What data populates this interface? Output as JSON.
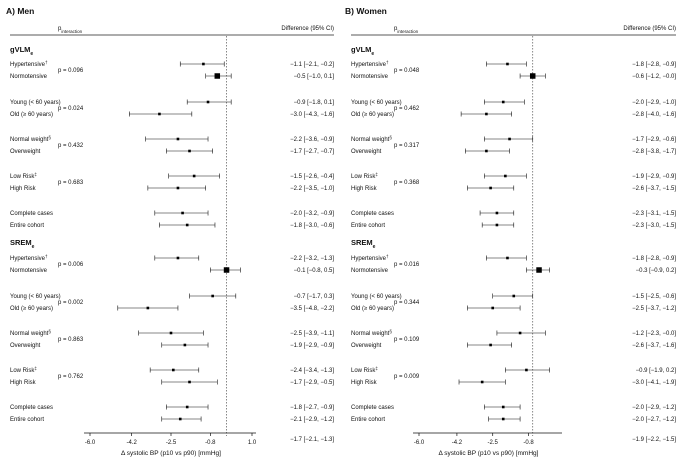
{
  "chart_data": [
    {
      "type": "forest",
      "panel_title": "A) Men",
      "header_left": "p",
      "header_left_sub": "interaction",
      "header_right": "Difference (95% CI)",
      "xlabel": "Δ systolic BP (p10 vs p90) [mmHg]",
      "xticks": [
        "-6.0",
        "-4.2",
        "-2.5",
        "-0.8",
        "1.0"
      ],
      "xlim": [
        -6.0,
        1.0
      ],
      "reference_line": -0.1,
      "groups": [
        {
          "title": "gVLM",
          "title_sub": "e",
          "rows": [
            {
              "label": "Hypertensive",
              "sup": "†",
              "est": -1.1,
              "lo": -2.1,
              "hi": -0.2,
              "ci": "−1.1 [−2.1, −0.2]",
              "p": "p = 0.096",
              "big": false
            },
            {
              "label": "Normotensive",
              "sup": "",
              "est": -0.5,
              "lo": -1.0,
              "hi": 0.1,
              "ci": "−0.5 [−1.0,  0.1]",
              "p": "",
              "big": true
            },
            {
              "label": "Young (< 60 years)",
              "sup": "",
              "est": -0.9,
              "lo": -1.8,
              "hi": 0.1,
              "ci": "−0.9 [−1.8,  0.1]",
              "p": "p = 0.024",
              "big": false
            },
            {
              "label": "Old (≥ 60 years)",
              "sup": "",
              "est": -3.0,
              "lo": -4.3,
              "hi": -1.6,
              "ci": "−3.0 [−4.3, −1.6]",
              "p": "",
              "big": false
            },
            {
              "label": "Normal weight",
              "sup": "§",
              "est": -2.2,
              "lo": -3.6,
              "hi": -0.9,
              "ci": "−2.2 [−3.6, −0.9]",
              "p": "p = 0.432",
              "big": false
            },
            {
              "label": "Overweight",
              "sup": "",
              "est": -1.7,
              "lo": -2.7,
              "hi": -0.7,
              "ci": "−1.7 [−2.7, −0.7]",
              "p": "",
              "big": false
            },
            {
              "label": "Low Risk",
              "sup": "‡",
              "est": -1.5,
              "lo": -2.6,
              "hi": -0.4,
              "ci": "−1.5 [−2.6, −0.4]",
              "p": "p = 0.683",
              "big": false
            },
            {
              "label": "High Risk",
              "sup": "",
              "est": -2.2,
              "lo": -3.5,
              "hi": -1.0,
              "ci": "−2.2 [−3.5, −1.0]",
              "p": "",
              "big": false
            },
            {
              "label": "Complete cases",
              "sup": "",
              "est": -2.0,
              "lo": -3.2,
              "hi": -0.9,
              "ci": "−2.0 [−3.2, −0.9]",
              "p": "",
              "big": false
            },
            {
              "label": "Entire cohort",
              "sup": "",
              "est": -1.8,
              "lo": -3.0,
              "hi": -0.6,
              "ci": "−1.8 [−3.0, −0.6]",
              "p": "",
              "big": false
            }
          ]
        },
        {
          "title": "SREM",
          "title_sub": "e",
          "rows": [
            {
              "label": "Hypertensive",
              "sup": "†",
              "est": -2.2,
              "lo": -3.2,
              "hi": -1.3,
              "ci": "−2.2 [−3.2, −1.3]",
              "p": "p = 0.006",
              "big": false
            },
            {
              "label": "Normotensive",
              "sup": "",
              "est": -0.1,
              "lo": -0.8,
              "hi": 0.5,
              "ci": "−0.1 [−0.8,  0.5]",
              "p": "",
              "big": true
            },
            {
              "label": "Young (< 60 years)",
              "sup": "",
              "est": -0.7,
              "lo": -1.7,
              "hi": 0.3,
              "ci": "−0.7 [−1.7,  0.3]",
              "p": "p = 0.002",
              "big": false
            },
            {
              "label": "Old (≥ 60 years)",
              "sup": "",
              "est": -3.5,
              "lo": -4.8,
              "hi": -2.2,
              "ci": "−3.5 [−4.8, −2.2]",
              "p": "",
              "big": false
            },
            {
              "label": "Normal weight",
              "sup": "§",
              "est": -2.5,
              "lo": -3.9,
              "hi": -1.1,
              "ci": "−2.5 [−3.9, −1.1]",
              "p": "p = 0.863",
              "big": false
            },
            {
              "label": "Overweight",
              "sup": "",
              "est": -1.9,
              "lo": -2.9,
              "hi": -0.9,
              "ci": "−1.9 [−2.9, −0.9]",
              "p": "",
              "big": false
            },
            {
              "label": "Low Risk",
              "sup": "‡",
              "est": -2.4,
              "lo": -3.4,
              "hi": -1.3,
              "ci": "−2.4 [−3.4, −1.3]",
              "p": "p = 0.762",
              "big": false
            },
            {
              "label": "High Risk",
              "sup": "",
              "est": -1.7,
              "lo": -2.9,
              "hi": -0.5,
              "ci": "−1.7 [−2.9, −0.5]",
              "p": "",
              "big": false
            },
            {
              "label": "Complete cases",
              "sup": "",
              "est": -1.8,
              "lo": -2.7,
              "hi": -0.9,
              "ci": "−1.8 [−2.7, −0.9]",
              "p": "",
              "big": false
            },
            {
              "label": "Entire cohort",
              "sup": "",
              "est": -2.1,
              "lo": -2.9,
              "hi": -1.2,
              "ci": "−2.1 [−2.9, −1.2]",
              "p": "",
              "big": false
            }
          ]
        }
      ],
      "footer_ci": "−1.7 [−2.1, −1.3]"
    },
    {
      "type": "forest",
      "panel_title": "B) Women",
      "header_left": "p",
      "header_left_sub": "interaction",
      "header_right": "Difference (95% CI)",
      "xlabel": "Δ systolic BP (p10 vs p90) [mmHg]",
      "xticks": [
        "-6.0",
        "-4.2",
        "-2.5",
        "-0.8"
      ],
      "xlim": [
        -6.0,
        0.6
      ],
      "reference_line": -0.6,
      "groups": [
        {
          "title": "gVLM",
          "title_sub": "e",
          "rows": [
            {
              "label": "Hypertensive",
              "sup": "†",
              "est": -1.8,
              "lo": -2.8,
              "hi": -0.9,
              "ci": "−1.8 [−2.8, −0.9]",
              "p": "p = 0.048",
              "big": false
            },
            {
              "label": "Normotensive",
              "sup": "",
              "est": -0.6,
              "lo": -1.2,
              "hi": -0.0,
              "ci": "−0.6 [−1.2, −0.0]",
              "p": "",
              "big": true
            },
            {
              "label": "Young (< 60 years)",
              "sup": "",
              "est": -2.0,
              "lo": -2.9,
              "hi": -1.0,
              "ci": "−2.0 [−2.9, −1.0]",
              "p": "p = 0.462",
              "big": false
            },
            {
              "label": "Old (≥ 60 years)",
              "sup": "",
              "est": -2.8,
              "lo": -4.0,
              "hi": -1.6,
              "ci": "−2.8 [−4.0, −1.6]",
              "p": "",
              "big": false
            },
            {
              "label": "Normal weight",
              "sup": "§",
              "est": -1.7,
              "lo": -2.9,
              "hi": -0.6,
              "ci": "−1.7 [−2.9, −0.6]",
              "p": "p = 0.317",
              "big": false
            },
            {
              "label": "Overweight",
              "sup": "",
              "est": -2.8,
              "lo": -3.8,
              "hi": -1.7,
              "ci": "−2.8 [−3.8, −1.7]",
              "p": "",
              "big": false
            },
            {
              "label": "Low Risk",
              "sup": "‡",
              "est": -1.9,
              "lo": -2.9,
              "hi": -0.9,
              "ci": "−1.9 [−2.9, −0.9]",
              "p": "p = 0.368",
              "big": false
            },
            {
              "label": "High Risk",
              "sup": "",
              "est": -2.6,
              "lo": -3.7,
              "hi": -1.5,
              "ci": "−2.6 [−3.7, −1.5]",
              "p": "",
              "big": false
            },
            {
              "label": "Complete cases",
              "sup": "",
              "est": -2.3,
              "lo": -3.1,
              "hi": -1.5,
              "ci": "−2.3 [−3.1, −1.5]",
              "p": "",
              "big": false
            },
            {
              "label": "Entire cohort",
              "sup": "",
              "est": -2.3,
              "lo": -3.0,
              "hi": -1.5,
              "ci": "−2.3 [−3.0, −1.5]",
              "p": "",
              "big": false
            }
          ]
        },
        {
          "title": "SREM",
          "title_sub": "e",
          "rows": [
            {
              "label": "Hypertensive",
              "sup": "†",
              "est": -1.8,
              "lo": -2.8,
              "hi": -0.9,
              "ci": "−1.8 [−2.8, −0.9]",
              "p": "p = 0.016",
              "big": false
            },
            {
              "label": "Normotensive",
              "sup": "",
              "est": -0.3,
              "lo": -0.9,
              "hi": 0.2,
              "ci": "−0.3 [−0.9,  0.2]",
              "p": "",
              "big": true
            },
            {
              "label": "Young (< 60 years)",
              "sup": "",
              "est": -1.5,
              "lo": -2.5,
              "hi": -0.6,
              "ci": "−1.5 [−2.5, −0.6]",
              "p": "p = 0.344",
              "big": false
            },
            {
              "label": "Old (≥ 60 years)",
              "sup": "",
              "est": -2.5,
              "lo": -3.7,
              "hi": -1.2,
              "ci": "−2.5 [−3.7, −1.2]",
              "p": "",
              "big": false
            },
            {
              "label": "Normal weight",
              "sup": "§",
              "est": -1.2,
              "lo": -2.3,
              "hi": -0.0,
              "ci": "−1.2 [−2.3, −0.0]",
              "p": "p = 0.109",
              "big": false
            },
            {
              "label": "Overweight",
              "sup": "",
              "est": -2.6,
              "lo": -3.7,
              "hi": -1.6,
              "ci": "−2.6 [−3.7, −1.6]",
              "p": "",
              "big": false
            },
            {
              "label": "Low Risk",
              "sup": "‡",
              "est": -0.9,
              "lo": -1.9,
              "hi": 0.2,
              "ci": "−0.9 [−1.9,  0.2]",
              "p": "p = 0.009",
              "big": false
            },
            {
              "label": "High Risk",
              "sup": "",
              "est": -3.0,
              "lo": -4.1,
              "hi": -1.9,
              "ci": "−3.0 [−4.1, −1.9]",
              "p": "",
              "big": false
            },
            {
              "label": "Complete cases",
              "sup": "",
              "est": -2.0,
              "lo": -2.9,
              "hi": -1.2,
              "ci": "−2.0 [−2.9, −1.2]",
              "p": "",
              "big": false
            },
            {
              "label": "Entire cohort",
              "sup": "",
              "est": -2.0,
              "lo": -2.7,
              "hi": -1.2,
              "ci": "−2.0 [−2.7, −1.2]",
              "p": "",
              "big": false
            }
          ]
        }
      ],
      "footer_ci": "−1.9 [−2.2, −1.5]"
    }
  ]
}
